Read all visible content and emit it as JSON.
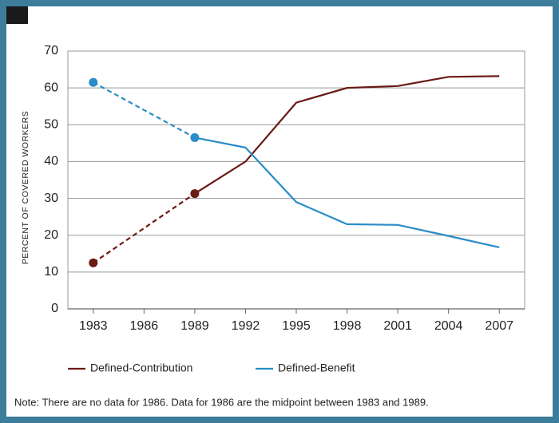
{
  "chart_data": {
    "type": "line",
    "y_label": "PERCENT OF COVERED WORKERS",
    "x": [
      1983,
      1989,
      1992,
      1995,
      1998,
      2001,
      2004,
      2007
    ],
    "series": [
      {
        "name": "Defined-Contribution",
        "color": "#6b1a14",
        "dashed_until": 1989,
        "values": [
          12.5,
          31.3,
          40,
          56,
          60,
          60.5,
          63,
          63.2
        ]
      },
      {
        "name": "Defined-Benefit",
        "color": "#2a8cc8",
        "dashed_until": 1989,
        "values": [
          61.5,
          46.5,
          43.8,
          29,
          23,
          22.8,
          19.8,
          16.7
        ]
      }
    ],
    "xlim": [
      1981.5,
      2008.5
    ],
    "xticks": [
      1983,
      1986,
      1989,
      1992,
      1995,
      1998,
      2001,
      2004,
      2007
    ],
    "ylim": [
      0,
      70
    ],
    "yticks": [
      0,
      10,
      20,
      30,
      40,
      50,
      60,
      70
    ],
    "grid": true,
    "note": "Note: There are no data for 1986. Data for 1986 are the midpoint between 1983 and 1989."
  }
}
